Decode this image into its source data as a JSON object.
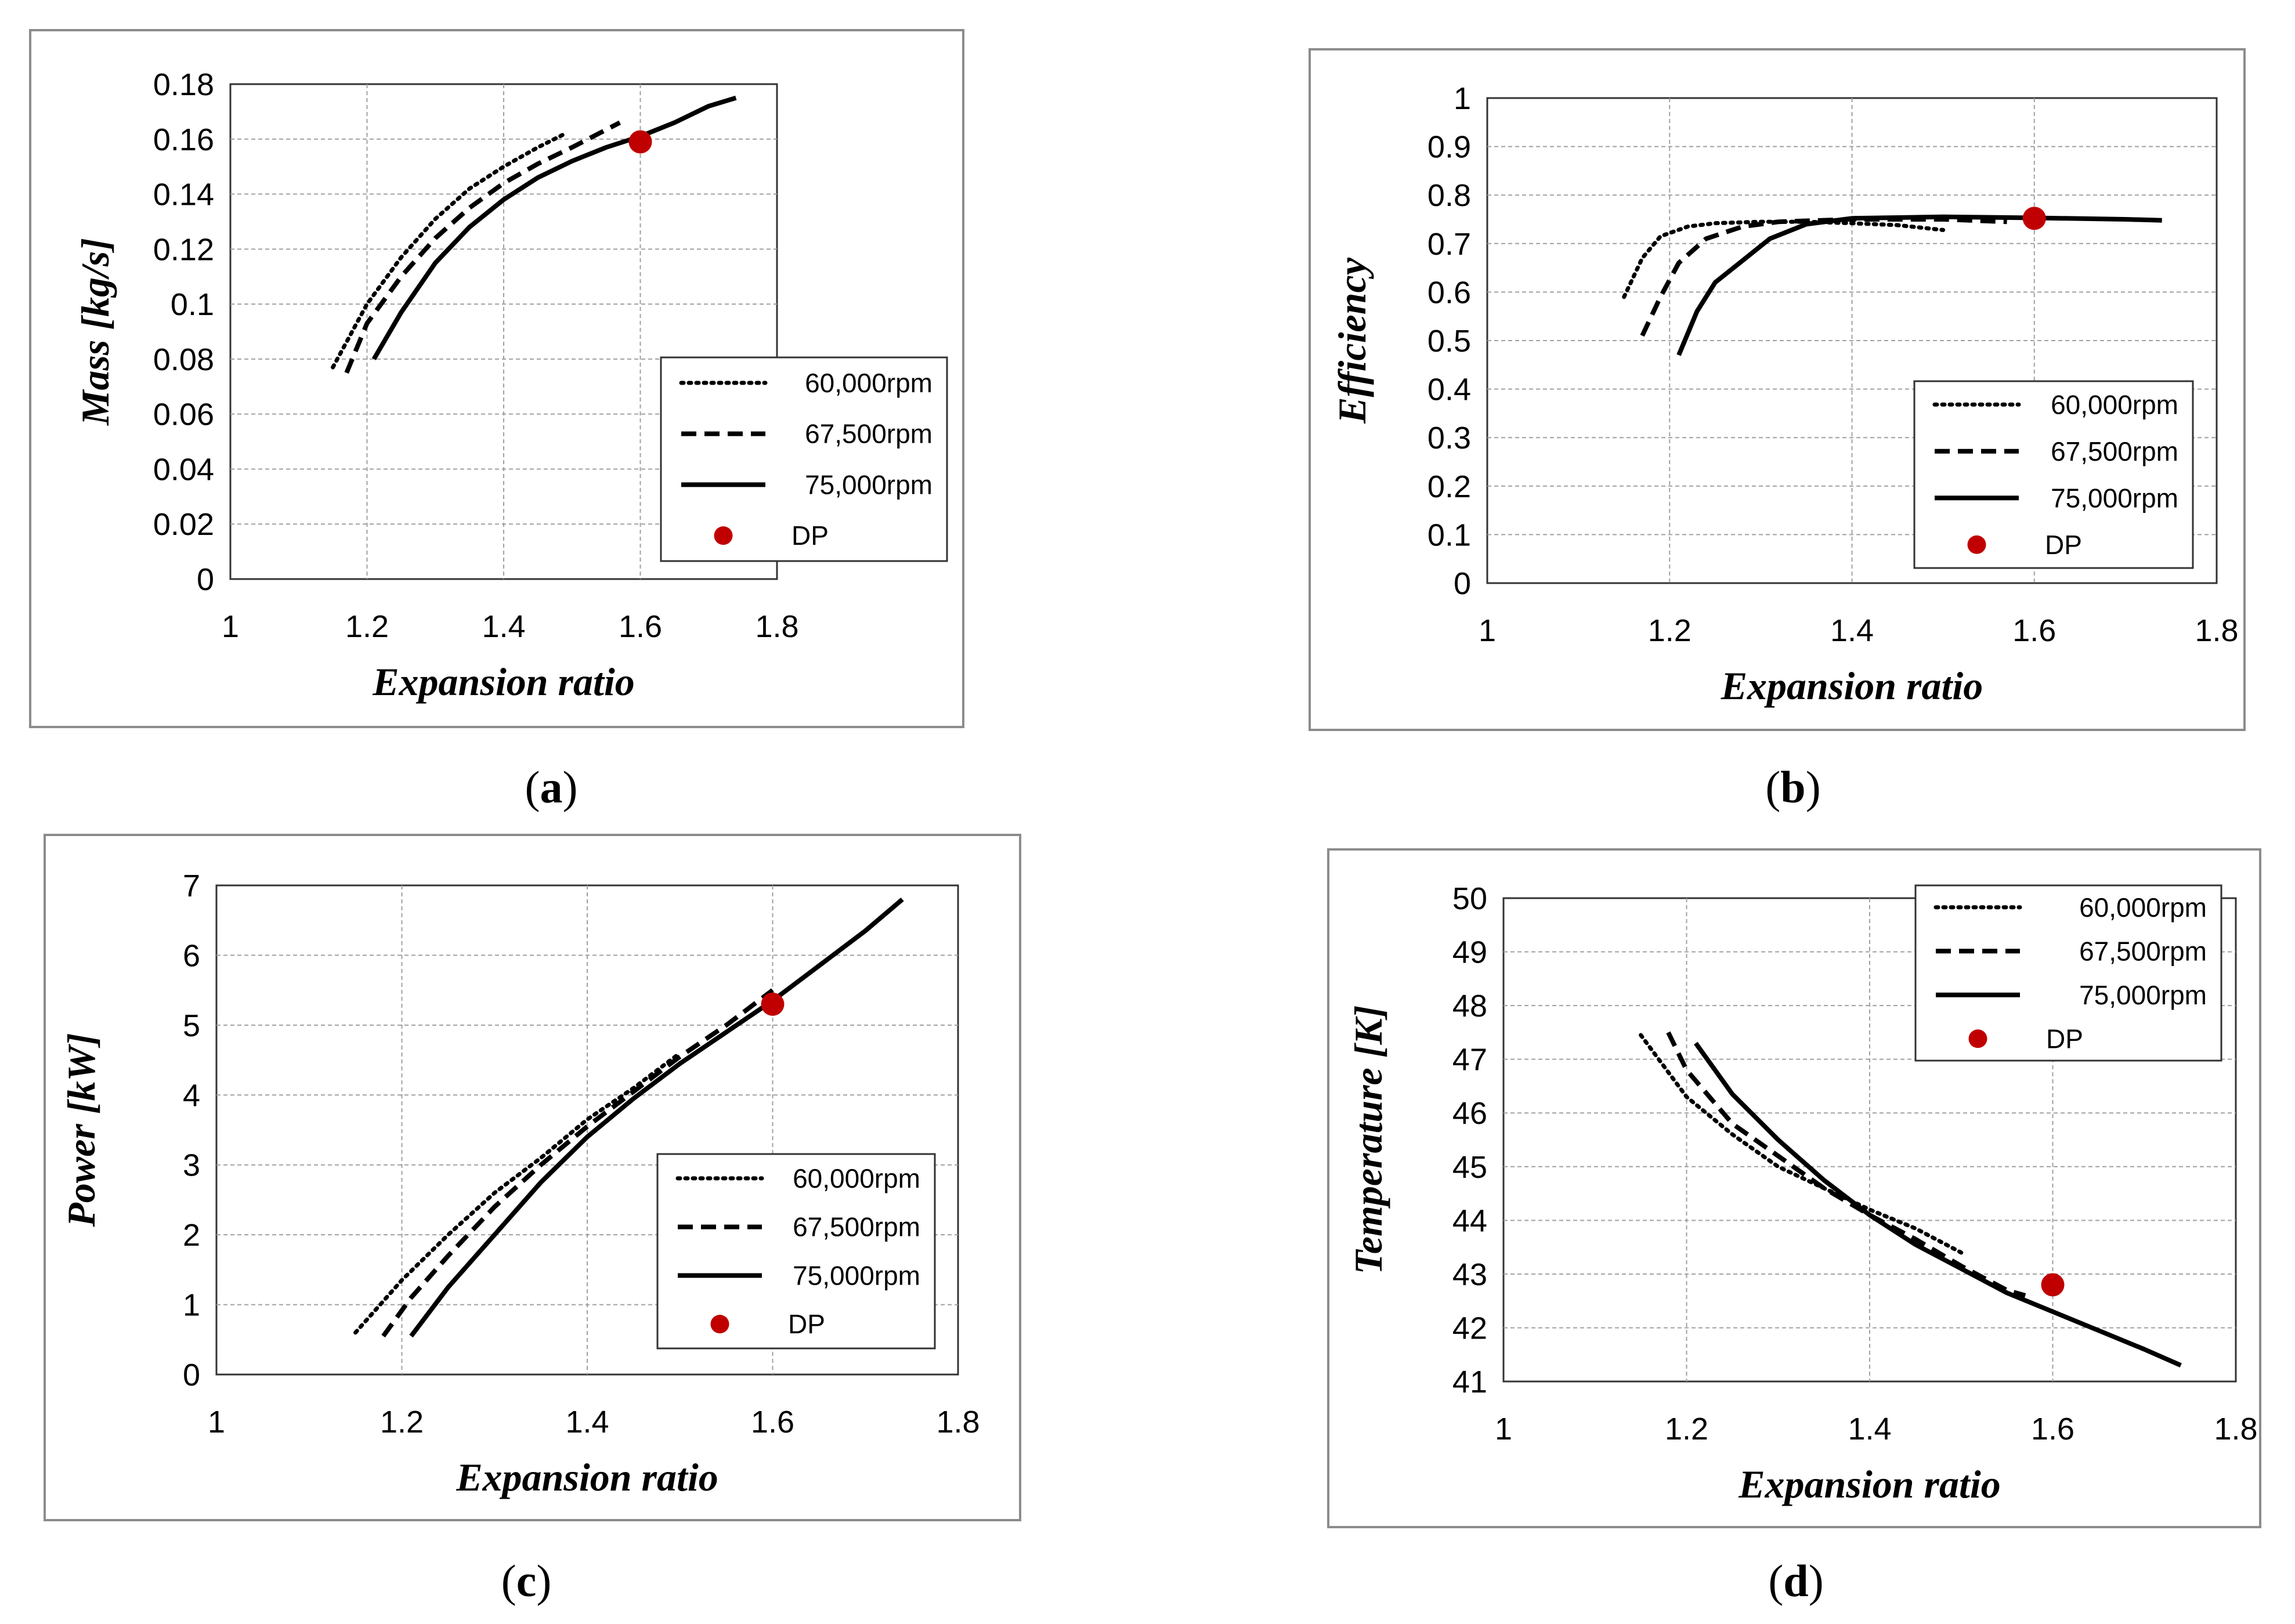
{
  "captions": [
    {
      "open": "(",
      "letter": "a",
      "close": ")"
    },
    {
      "open": "(",
      "letter": "b",
      "close": ")"
    },
    {
      "open": "(",
      "letter": "c",
      "close": ")"
    },
    {
      "open": "(",
      "letter": "d",
      "close": ")"
    }
  ],
  "chart_data": [
    {
      "type": "line",
      "title": "",
      "xlabel": "Expansion ratio",
      "ylabel": "Mass [kg/s]",
      "xlim": [
        1,
        1.8
      ],
      "ylim": [
        0,
        0.18
      ],
      "x_ticks": [
        "1",
        "1.2",
        "1.4",
        "1.6",
        "1.8"
      ],
      "y_ticks": [
        "0",
        "0.02",
        "0.04",
        "0.06",
        "0.08",
        "0.1",
        "0.12",
        "0.14",
        "0.16",
        "0.18"
      ],
      "series": [
        {
          "name": "60,000rpm",
          "style": "dotted",
          "x": [
            1.15,
            1.2,
            1.25,
            1.3,
            1.35,
            1.4,
            1.45,
            1.49
          ],
          "y": [
            0.077,
            0.1,
            0.117,
            0.131,
            0.142,
            0.15,
            0.157,
            0.162
          ]
        },
        {
          "name": "67,500rpm",
          "style": "dashed",
          "x": [
            1.17,
            1.2,
            1.25,
            1.3,
            1.35,
            1.4,
            1.45,
            1.5,
            1.57
          ],
          "y": [
            0.075,
            0.093,
            0.11,
            0.124,
            0.135,
            0.144,
            0.151,
            0.157,
            0.166
          ]
        },
        {
          "name": "75,000rpm",
          "style": "solid",
          "x": [
            1.21,
            1.25,
            1.3,
            1.35,
            1.4,
            1.45,
            1.5,
            1.55,
            1.6,
            1.65,
            1.7,
            1.74
          ],
          "y": [
            0.08,
            0.097,
            0.115,
            0.128,
            0.138,
            0.146,
            0.152,
            0.157,
            0.161,
            0.166,
            0.172,
            0.175
          ]
        }
      ],
      "design_point": {
        "name": "DP",
        "x": 1.6,
        "y": 0.159
      }
    },
    {
      "type": "line",
      "title": "",
      "xlabel": "Expansion ratio",
      "ylabel": "Efficiency",
      "xlim": [
        1,
        1.8
      ],
      "ylim": [
        0,
        1
      ],
      "x_ticks": [
        "1",
        "1.2",
        "1.4",
        "1.6",
        "1.8"
      ],
      "y_ticks": [
        "0",
        "0.1",
        "0.2",
        "0.3",
        "0.4",
        "0.5",
        "0.6",
        "0.7",
        "0.8",
        "0.9",
        "1"
      ],
      "series": [
        {
          "name": "60,000rpm",
          "style": "dotted",
          "x": [
            1.15,
            1.17,
            1.19,
            1.22,
            1.25,
            1.3,
            1.35,
            1.4,
            1.45,
            1.5
          ],
          "y": [
            0.59,
            0.67,
            0.715,
            0.735,
            0.742,
            0.745,
            0.745,
            0.742,
            0.738,
            0.728
          ]
        },
        {
          "name": "67,500rpm",
          "style": "dashed",
          "x": [
            1.17,
            1.19,
            1.21,
            1.24,
            1.28,
            1.32,
            1.4,
            1.5,
            1.57
          ],
          "y": [
            0.51,
            0.59,
            0.66,
            0.71,
            0.735,
            0.745,
            0.75,
            0.75,
            0.745
          ]
        },
        {
          "name": "75,000rpm",
          "style": "solid",
          "x": [
            1.21,
            1.23,
            1.25,
            1.28,
            1.31,
            1.35,
            1.4,
            1.5,
            1.6,
            1.7,
            1.74
          ],
          "y": [
            0.47,
            0.56,
            0.62,
            0.665,
            0.71,
            0.74,
            0.752,
            0.755,
            0.753,
            0.75,
            0.748
          ]
        }
      ],
      "design_point": {
        "name": "DP",
        "x": 1.6,
        "y": 0.752
      }
    },
    {
      "type": "line",
      "title": "",
      "xlabel": "Expansion ratio",
      "ylabel": "Power [kW]",
      "xlim": [
        1,
        1.8
      ],
      "ylim": [
        0,
        7
      ],
      "x_ticks": [
        "1",
        "1.2",
        "1.4",
        "1.6",
        "1.8"
      ],
      "y_ticks": [
        "0",
        "1",
        "2",
        "3",
        "4",
        "5",
        "6",
        "7"
      ],
      "series": [
        {
          "name": "60,000rpm",
          "style": "dotted",
          "x": [
            1.15,
            1.2,
            1.25,
            1.3,
            1.35,
            1.4,
            1.45,
            1.5
          ],
          "y": [
            0.6,
            1.35,
            2.0,
            2.6,
            3.1,
            3.65,
            4.1,
            4.6
          ]
        },
        {
          "name": "67,500rpm",
          "style": "dashed",
          "x": [
            1.18,
            1.21,
            1.25,
            1.3,
            1.35,
            1.4,
            1.45,
            1.5,
            1.55,
            1.6
          ],
          "y": [
            0.55,
            1.1,
            1.7,
            2.4,
            3.0,
            3.55,
            4.05,
            4.55,
            5.0,
            5.5
          ]
        },
        {
          "name": "75,000rpm",
          "style": "solid",
          "x": [
            1.21,
            1.25,
            1.3,
            1.35,
            1.4,
            1.45,
            1.5,
            1.55,
            1.6,
            1.65,
            1.7,
            1.74
          ],
          "y": [
            0.55,
            1.25,
            2.0,
            2.75,
            3.4,
            3.95,
            4.45,
            4.9,
            5.35,
            5.85,
            6.35,
            6.8
          ]
        }
      ],
      "design_point": {
        "name": "DP",
        "x": 1.6,
        "y": 5.3
      }
    },
    {
      "type": "line",
      "title": "",
      "xlabel": "Expansion ratio",
      "ylabel": "Temperature [K]",
      "xlim": [
        1,
        1.8
      ],
      "ylim": [
        41,
        50
      ],
      "x_ticks": [
        "1",
        "1.2",
        "1.4",
        "1.6",
        "1.8"
      ],
      "y_ticks": [
        "41",
        "42",
        "43",
        "44",
        "45",
        "46",
        "47",
        "48",
        "49",
        "50"
      ],
      "series": [
        {
          "name": "60,000rpm",
          "style": "dotted",
          "x": [
            1.15,
            1.2,
            1.25,
            1.3,
            1.35,
            1.4,
            1.45,
            1.5
          ],
          "y": [
            47.45,
            46.3,
            45.6,
            45.0,
            44.6,
            44.2,
            43.85,
            43.4
          ]
        },
        {
          "name": "67,500rpm",
          "style": "dashed",
          "x": [
            1.18,
            1.2,
            1.25,
            1.3,
            1.35,
            1.4,
            1.45,
            1.5,
            1.55,
            1.57
          ],
          "y": [
            47.5,
            46.8,
            45.8,
            45.2,
            44.6,
            44.1,
            43.65,
            43.15,
            42.7,
            42.6
          ]
        },
        {
          "name": "75,000rpm",
          "style": "solid",
          "x": [
            1.21,
            1.25,
            1.3,
            1.35,
            1.4,
            1.45,
            1.5,
            1.55,
            1.6,
            1.65,
            1.7,
            1.74
          ],
          "y": [
            47.3,
            46.35,
            45.5,
            44.75,
            44.1,
            43.55,
            43.1,
            42.65,
            42.3,
            41.95,
            41.6,
            41.3
          ]
        }
      ],
      "design_point": {
        "name": "DP",
        "x": 1.6,
        "y": 42.8
      }
    }
  ],
  "legend": {
    "items": [
      "60,000rpm",
      "67,500rpm",
      "75,000rpm",
      "DP"
    ]
  },
  "colors": {
    "line": "#000000",
    "grid": "#a0a0a0",
    "design_point": "#c00000",
    "frame": "#8c8c8c"
  }
}
